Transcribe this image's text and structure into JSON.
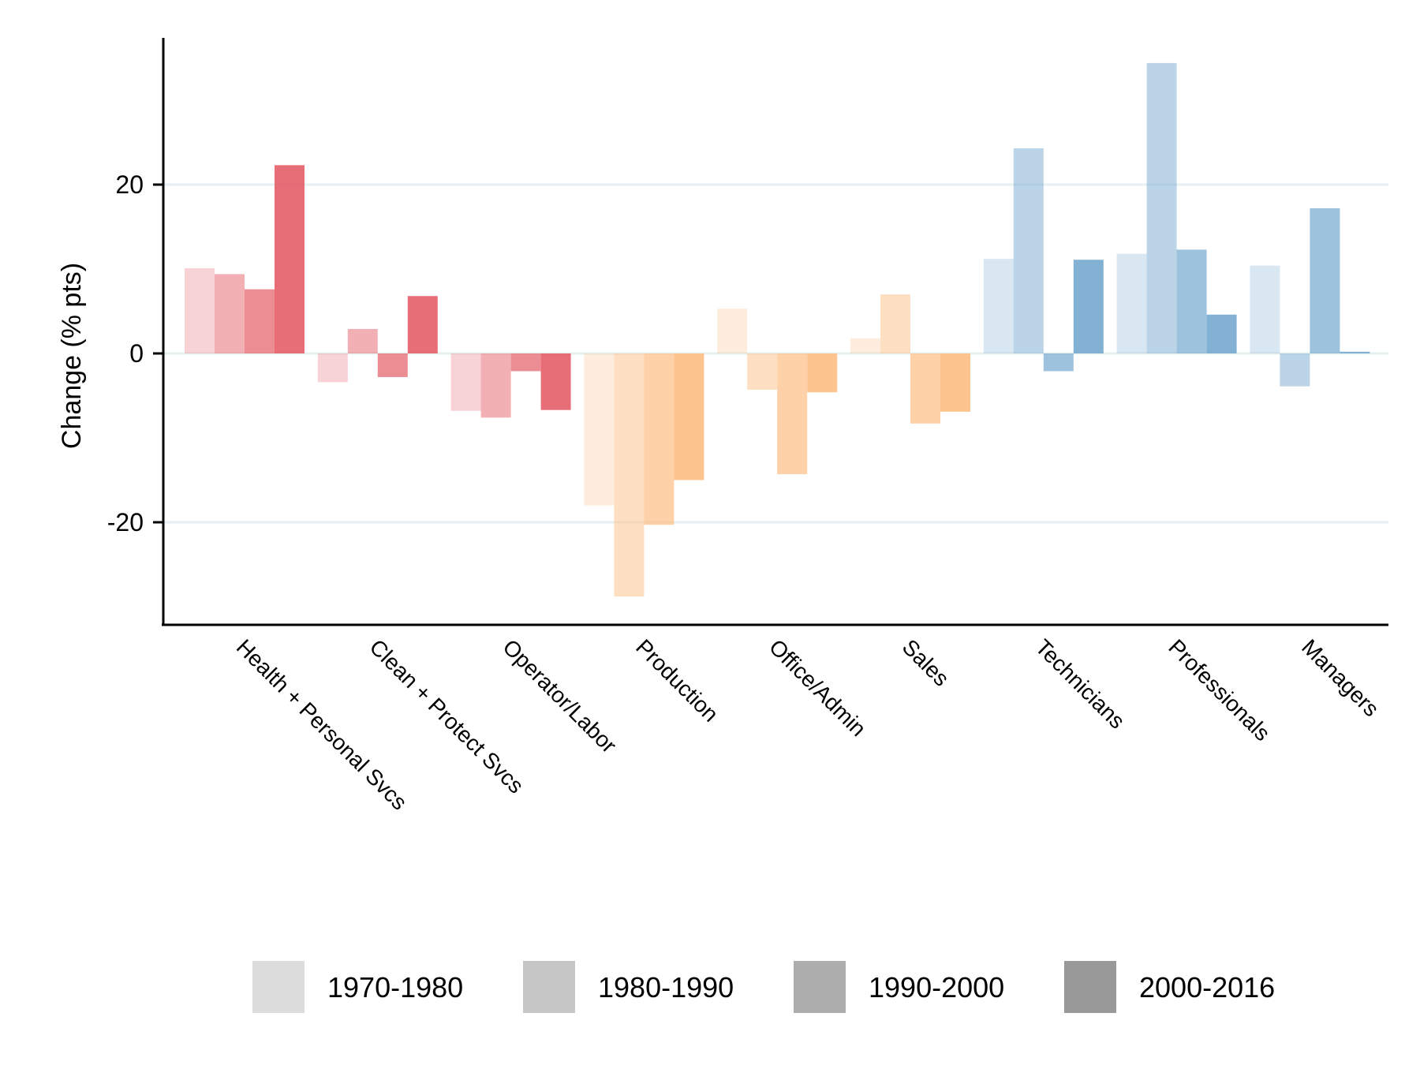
{
  "chart_data": {
    "type": "bar",
    "title": "",
    "xlabel": "",
    "ylabel": "Change (% pts)",
    "ylim": [
      -32,
      37
    ],
    "yticks": [
      -20,
      0,
      20
    ],
    "ytick_labels": [
      "-20",
      "0",
      "20"
    ],
    "grid": "horizontal at y ticks",
    "legend_position": "bottom",
    "categories": [
      "Health + Personal Svcs",
      "Clean + Protect Svcs",
      "Operator/Labor",
      "Production",
      "Office/Admin",
      "Sales",
      "Technicians",
      "Professionals",
      "Managers"
    ],
    "category_base_colors": [
      "#e5616b",
      "#e5616b",
      "#e5616b",
      "#fdbf86",
      "#fdbf86",
      "#fdbf86",
      "#77aad0",
      "#77aad0",
      "#77aad0"
    ],
    "series": [
      {
        "name": "1970-1980",
        "opacity": 0.28,
        "legend_color": "#dcdcdc",
        "values": [
          10.1,
          -3.4,
          -6.8,
          -18.0,
          5.3,
          1.8,
          11.2,
          11.8,
          10.4
        ]
      },
      {
        "name": "1980-1990",
        "opacity": 0.5,
        "legend_color": "#c6c6c6",
        "values": [
          9.4,
          2.9,
          -7.6,
          -28.8,
          -4.3,
          7.0,
          24.3,
          34.4,
          -3.9
        ]
      },
      {
        "name": "1990-2000",
        "opacity": 0.72,
        "legend_color": "#adadad",
        "values": [
          7.6,
          -2.8,
          -2.1,
          -20.3,
          -14.3,
          -8.3,
          -2.1,
          12.3,
          17.2
        ]
      },
      {
        "name": "2000-2016",
        "opacity": 0.92,
        "legend_color": "#999999",
        "values": [
          22.3,
          6.8,
          -6.7,
          -15.0,
          -4.6,
          -6.9,
          11.1,
          4.6,
          0.2
        ]
      }
    ]
  }
}
